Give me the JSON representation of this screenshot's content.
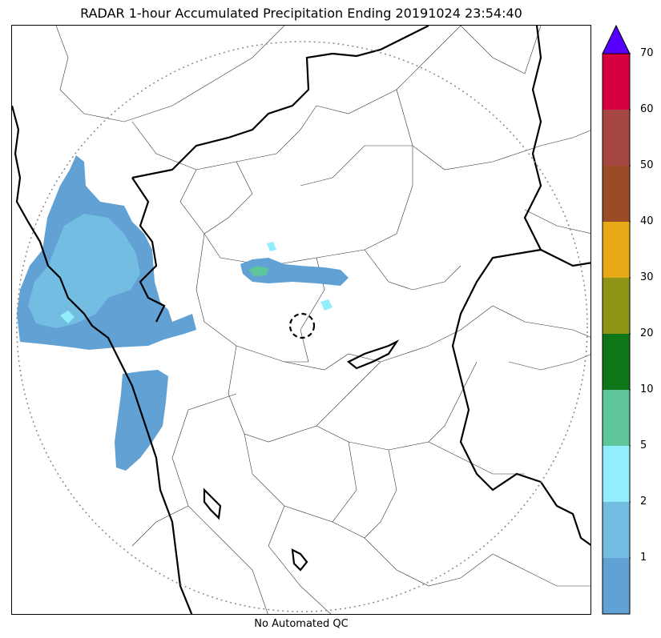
{
  "title": "RADAR 1-hour Accumulated Precipitation Ending 20191024 23:54:40",
  "footer_note": "No Automated QC",
  "colorbar": {
    "extend": "max",
    "arrow_color": "#5500ff",
    "bins": [
      {
        "color": "#62a1d3",
        "label": "1"
      },
      {
        "color": "#73bde3",
        "label": "2"
      },
      {
        "color": "#92edfd",
        "label": "5"
      },
      {
        "color": "#5ec49a",
        "label": "10"
      },
      {
        "color": "#0e7619",
        "label": "20"
      },
      {
        "color": "#8d9416",
        "label": "30"
      },
      {
        "color": "#e8a916",
        "label": "40"
      },
      {
        "color": "#9a4c27",
        "label": "50"
      },
      {
        "color": "#a74743",
        "label": "60"
      },
      {
        "color": "#d7003e",
        "label": "70"
      }
    ]
  },
  "map": {
    "radar_range_ring": "dotted",
    "radar_site_marker": "dashed-circle",
    "precip_colors": {
      "light": "#62a1d3",
      "medium": "#73bde3",
      "heavy": "#92edfd",
      "teal": "#5ec49a"
    }
  }
}
